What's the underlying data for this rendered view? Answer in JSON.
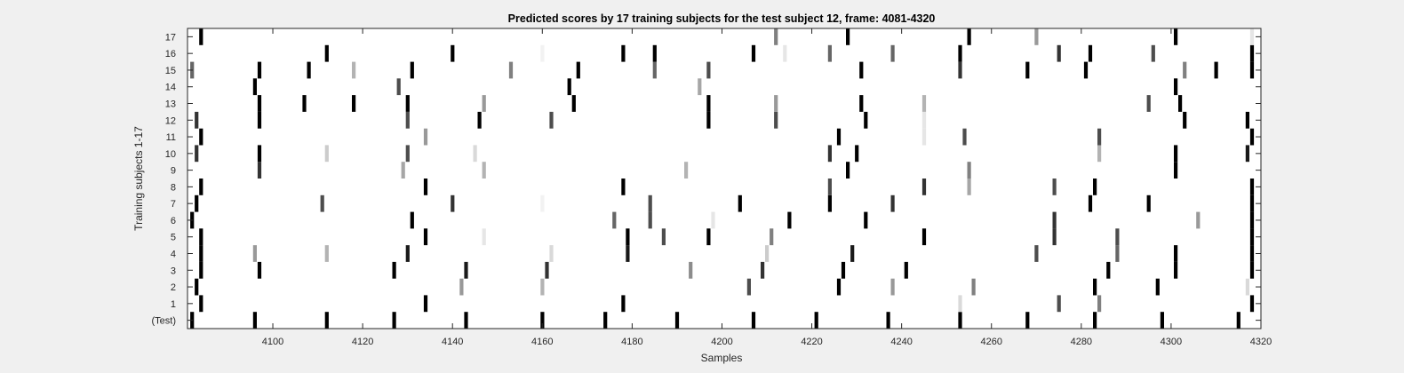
{
  "chart_data": {
    "type": "heatmap",
    "title": "Predicted scores by 17 training subjects for the test subject 12, frame: 4081-4320",
    "xlabel": "Samples",
    "ylabel": "Training subjects 1-17",
    "xlim": [
      4081,
      4320
    ],
    "x_ticks": [
      4100,
      4120,
      4140,
      4160,
      4180,
      4200,
      4220,
      4240,
      4260,
      4280,
      4300,
      4320
    ],
    "y_tick_labels": [
      "(Test)",
      "1",
      "2",
      "3",
      "4",
      "5",
      "6",
      "7",
      "8",
      "9",
      "10",
      "11",
      "12",
      "13",
      "14",
      "15",
      "16",
      "17"
    ],
    "colormap": "gray (white = 0, black = 1)",
    "grid": false,
    "legend": "none",
    "rows": [
      {
        "label": "(Test)",
        "points": [
          [
            4082,
            1
          ],
          [
            4096,
            1
          ],
          [
            4112,
            1
          ],
          [
            4127,
            1
          ],
          [
            4143,
            1
          ],
          [
            4160,
            1
          ],
          [
            4174,
            1
          ],
          [
            4190,
            1
          ],
          [
            4207,
            1
          ],
          [
            4221,
            1
          ],
          [
            4237,
            1
          ],
          [
            4253,
            1
          ],
          [
            4268,
            1
          ],
          [
            4283,
            1
          ],
          [
            4298,
            1
          ],
          [
            4315,
            1
          ]
        ]
      },
      {
        "label": "1",
        "points": [
          [
            4084,
            1
          ],
          [
            4134,
            1
          ],
          [
            4178,
            1
          ],
          [
            4253,
            0.15
          ],
          [
            4275,
            0.7
          ],
          [
            4284,
            0.5
          ],
          [
            4318,
            1
          ]
        ]
      },
      {
        "label": "2",
        "points": [
          [
            4083,
            1
          ],
          [
            4142,
            0.4
          ],
          [
            4160,
            0.3
          ],
          [
            4206,
            0.7
          ],
          [
            4226,
            1
          ],
          [
            4238,
            0.4
          ],
          [
            4256,
            0.5
          ],
          [
            4283,
            1
          ],
          [
            4297,
            1
          ],
          [
            4317,
            0.15
          ]
        ]
      },
      {
        "label": "3",
        "points": [
          [
            4084,
            1
          ],
          [
            4097,
            1
          ],
          [
            4127,
            1
          ],
          [
            4143,
            0.9
          ],
          [
            4161,
            0.8
          ],
          [
            4193,
            0.45
          ],
          [
            4209,
            0.8
          ],
          [
            4227,
            1
          ],
          [
            4241,
            1
          ],
          [
            4286,
            1
          ],
          [
            4301,
            1
          ],
          [
            4318,
            1
          ]
        ]
      },
      {
        "label": "4",
        "points": [
          [
            4084,
            1
          ],
          [
            4096,
            0.4
          ],
          [
            4112,
            0.3
          ],
          [
            4130,
            0.9
          ],
          [
            4162,
            0.15
          ],
          [
            4179,
            0.9
          ],
          [
            4210,
            0.2
          ],
          [
            4229,
            0.9
          ],
          [
            4270,
            0.7
          ],
          [
            4288,
            0.6
          ],
          [
            4301,
            1
          ],
          [
            4318,
            1
          ]
        ]
      },
      {
        "label": "5",
        "points": [
          [
            4084,
            1
          ],
          [
            4134,
            1
          ],
          [
            4147,
            0.1
          ],
          [
            4179,
            1
          ],
          [
            4187,
            0.7
          ],
          [
            4197,
            1
          ],
          [
            4211,
            0.5
          ],
          [
            4245,
            1
          ],
          [
            4274,
            0.8
          ],
          [
            4288,
            0.7
          ],
          [
            4318,
            1
          ]
        ]
      },
      {
        "label": "6",
        "points": [
          [
            4082,
            1
          ],
          [
            4131,
            1
          ],
          [
            4176,
            0.6
          ],
          [
            4184,
            0.7
          ],
          [
            4198,
            0.1
          ],
          [
            4215,
            1
          ],
          [
            4232,
            1
          ],
          [
            4274,
            0.8
          ],
          [
            4306,
            0.4
          ],
          [
            4318,
            1
          ]
        ]
      },
      {
        "label": "7",
        "points": [
          [
            4083,
            1
          ],
          [
            4111,
            0.7
          ],
          [
            4140,
            0.8
          ],
          [
            4160,
            0.05
          ],
          [
            4184,
            0.7
          ],
          [
            4204,
            1
          ],
          [
            4224,
            1
          ],
          [
            4238,
            0.8
          ],
          [
            4282,
            1
          ],
          [
            4295,
            1
          ],
          [
            4318,
            1
          ]
        ]
      },
      {
        "label": "8",
        "points": [
          [
            4084,
            1
          ],
          [
            4134,
            1
          ],
          [
            4178,
            1
          ],
          [
            4224,
            0.7
          ],
          [
            4245,
            0.8
          ],
          [
            4255,
            0.35
          ],
          [
            4274,
            0.7
          ],
          [
            4283,
            1
          ],
          [
            4318,
            1
          ]
        ]
      },
      {
        "label": "9",
        "points": [
          [
            4097,
            0.8
          ],
          [
            4129,
            0.35
          ],
          [
            4147,
            0.3
          ],
          [
            4192,
            0.3
          ],
          [
            4228,
            1
          ],
          [
            4255,
            0.5
          ],
          [
            4301,
            1
          ]
        ]
      },
      {
        "label": "10",
        "points": [
          [
            4083,
            0.8
          ],
          [
            4097,
            1
          ],
          [
            4112,
            0.2
          ],
          [
            4130,
            0.7
          ],
          [
            4145,
            0.15
          ],
          [
            4224,
            0.8
          ],
          [
            4230,
            1
          ],
          [
            4284,
            0.3
          ],
          [
            4301,
            1
          ],
          [
            4317,
            0.9
          ]
        ]
      },
      {
        "label": "11",
        "points": [
          [
            4084,
            1
          ],
          [
            4134,
            0.4
          ],
          [
            4226,
            1
          ],
          [
            4245,
            0.1
          ],
          [
            4254,
            0.7
          ],
          [
            4284,
            0.7
          ],
          [
            4318,
            1
          ]
        ]
      },
      {
        "label": "12",
        "points": [
          [
            4083,
            0.8
          ],
          [
            4097,
            1
          ],
          [
            4130,
            0.7
          ],
          [
            4146,
            1
          ],
          [
            4162,
            0.7
          ],
          [
            4197,
            1
          ],
          [
            4212,
            0.7
          ],
          [
            4232,
            1
          ],
          [
            4245,
            0.1
          ],
          [
            4303,
            1
          ],
          [
            4317,
            1
          ]
        ]
      },
      {
        "label": "13",
        "points": [
          [
            4097,
            1
          ],
          [
            4107,
            1
          ],
          [
            4118,
            1
          ],
          [
            4130,
            1
          ],
          [
            4147,
            0.4
          ],
          [
            4167,
            1
          ],
          [
            4197,
            1
          ],
          [
            4212,
            0.4
          ],
          [
            4231,
            1
          ],
          [
            4245,
            0.3
          ],
          [
            4295,
            0.7
          ],
          [
            4302,
            1
          ]
        ]
      },
      {
        "label": "14",
        "points": [
          [
            4096,
            1
          ],
          [
            4128,
            0.7
          ],
          [
            4166,
            1
          ],
          [
            4195,
            0.35
          ],
          [
            4301,
            1
          ]
        ]
      },
      {
        "label": "15",
        "points": [
          [
            4082,
            0.6
          ],
          [
            4097,
            1
          ],
          [
            4108,
            1
          ],
          [
            4118,
            0.3
          ],
          [
            4131,
            1
          ],
          [
            4153,
            0.5
          ],
          [
            4168,
            1
          ],
          [
            4185,
            0.6
          ],
          [
            4197,
            0.7
          ],
          [
            4231,
            1
          ],
          [
            4253,
            0.8
          ],
          [
            4268,
            1
          ],
          [
            4281,
            1
          ],
          [
            4303,
            0.5
          ],
          [
            4310,
            1
          ],
          [
            4318,
            1
          ]
        ]
      },
      {
        "label": "16",
        "points": [
          [
            4112,
            1
          ],
          [
            4140,
            1
          ],
          [
            4160,
            0.05
          ],
          [
            4178,
            1
          ],
          [
            4185,
            1
          ],
          [
            4207,
            1
          ],
          [
            4214,
            0.1
          ],
          [
            4224,
            0.6
          ],
          [
            4238,
            0.6
          ],
          [
            4253,
            1
          ],
          [
            4275,
            0.8
          ],
          [
            4282,
            1
          ],
          [
            4296,
            0.7
          ],
          [
            4318,
            1
          ]
        ]
      },
      {
        "label": "17",
        "points": [
          [
            4084,
            1
          ],
          [
            4212,
            0.5
          ],
          [
            4228,
            1
          ],
          [
            4255,
            1
          ],
          [
            4270,
            0.4
          ],
          [
            4301,
            1
          ],
          [
            4318,
            0.1
          ]
        ]
      }
    ]
  }
}
